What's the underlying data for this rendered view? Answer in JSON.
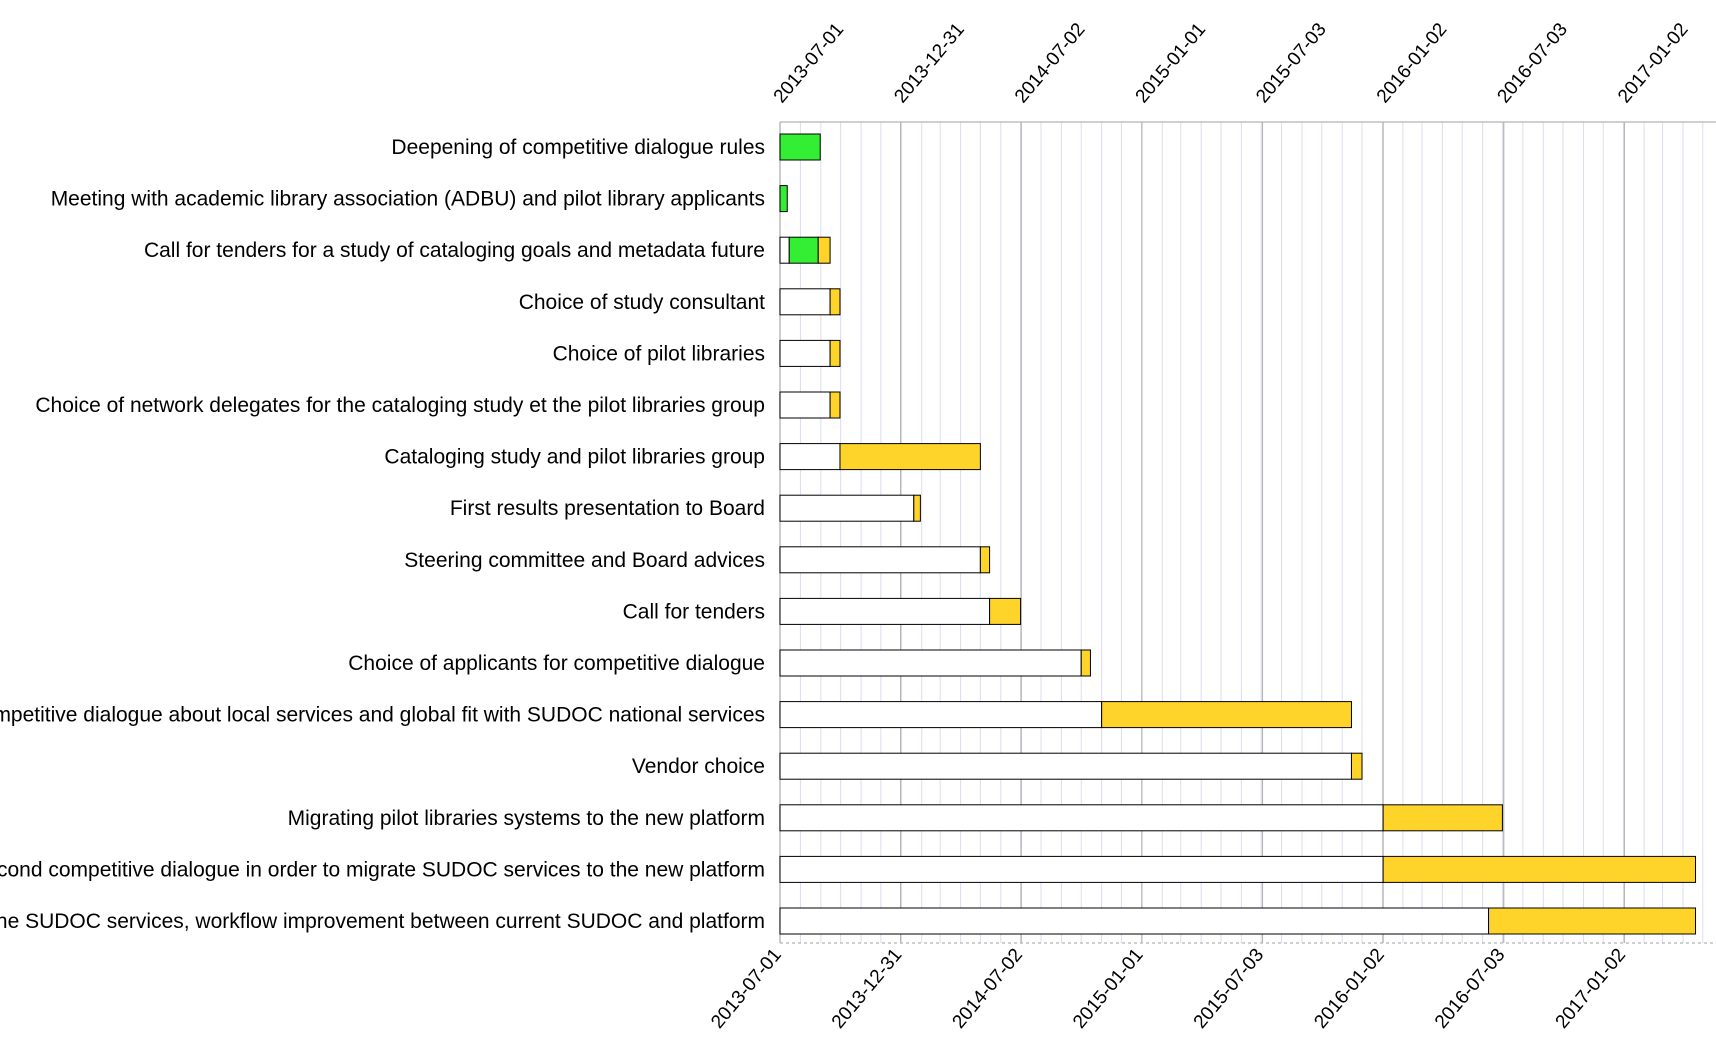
{
  "chart_data": {
    "type": "gantt",
    "title": "",
    "xlabel": "",
    "ylabel": "",
    "x_axis": {
      "type": "date",
      "range": [
        "2013-07-01",
        "2017-05-15"
      ],
      "tick_labels": [
        "2013-07-01",
        "2013-12-31",
        "2014-07-02",
        "2015-01-01",
        "2015-07-03",
        "2016-01-02",
        "2016-07-03",
        "2017-01-02"
      ],
      "tick_positions": [
        "top",
        "bottom"
      ],
      "minor_gridlines": "monthly"
    },
    "grid": true,
    "legend": "none",
    "colors": {
      "completed": "#33ee33",
      "remaining": "#fed42a",
      "lead": "#ffffff",
      "outline": "#000000",
      "major_grid": "#b4b4b4",
      "minor_grid": "#dcdcf2"
    },
    "tasks": [
      {
        "name": "Deepening of competitive dialogue rules",
        "start": "2013-07-01",
        "end": "2013-08-31",
        "completed_until": "2013-08-31"
      },
      {
        "name": "Meeting with academic library association (ADBU) and pilot library applicants",
        "start": "2013-07-01",
        "end": "2013-07-12",
        "completed_until": "2013-07-12"
      },
      {
        "name": "Call for tenders for a study of cataloging goals and metadata future",
        "start": "2013-07-15",
        "end": "2013-09-15",
        "completed_until": "2013-08-28"
      },
      {
        "name": "Choice of study consultant",
        "start": "2013-09-15",
        "end": "2013-09-30",
        "completed_until": null
      },
      {
        "name": "Choice of pilot libraries",
        "start": "2013-09-15",
        "end": "2013-09-30",
        "completed_until": null
      },
      {
        "name": "Choice of network delegates for the cataloging study et the pilot libraries group",
        "start": "2013-09-15",
        "end": "2013-09-30",
        "completed_until": null
      },
      {
        "name": "Cataloging study and pilot libraries group",
        "start": "2013-09-30",
        "end": "2014-05-01",
        "completed_until": null
      },
      {
        "name": "First results presentation to Board",
        "start": "2014-01-20",
        "end": "2014-01-30",
        "completed_until": null
      },
      {
        "name": "Steering committee and Board advices",
        "start": "2014-05-01",
        "end": "2014-05-15",
        "completed_until": null
      },
      {
        "name": "Call for tenders",
        "start": "2014-05-15",
        "end": "2014-07-01",
        "completed_until": null
      },
      {
        "name": "Choice of applicants for competitive dialogue",
        "start": "2014-10-01",
        "end": "2014-10-15",
        "completed_until": null
      },
      {
        "name": "First competitive dialogue about local services and global fit with SUDOC national services",
        "start": "2014-11-01",
        "end": "2015-11-15",
        "completed_until": null
      },
      {
        "name": "Vendor choice",
        "start": "2015-11-15",
        "end": "2015-12-01",
        "completed_until": null
      },
      {
        "name": "Migrating pilot libraries systems to the new platform",
        "start": "2016-01-02",
        "end": "2016-07-01",
        "completed_until": null
      },
      {
        "name": "Second competitive dialogue in order to migrate SUDOC services to the new platform",
        "start": "2016-01-02",
        "end": "2017-04-20",
        "completed_until": null
      },
      {
        "name": "Pilot libraries and network preparation to the new platform that will partly replace the SUDOC services, workflow improvement between current SUDOC and platform",
        "start": "2016-06-10",
        "end": "2017-04-20",
        "completed_until": null
      }
    ]
  }
}
